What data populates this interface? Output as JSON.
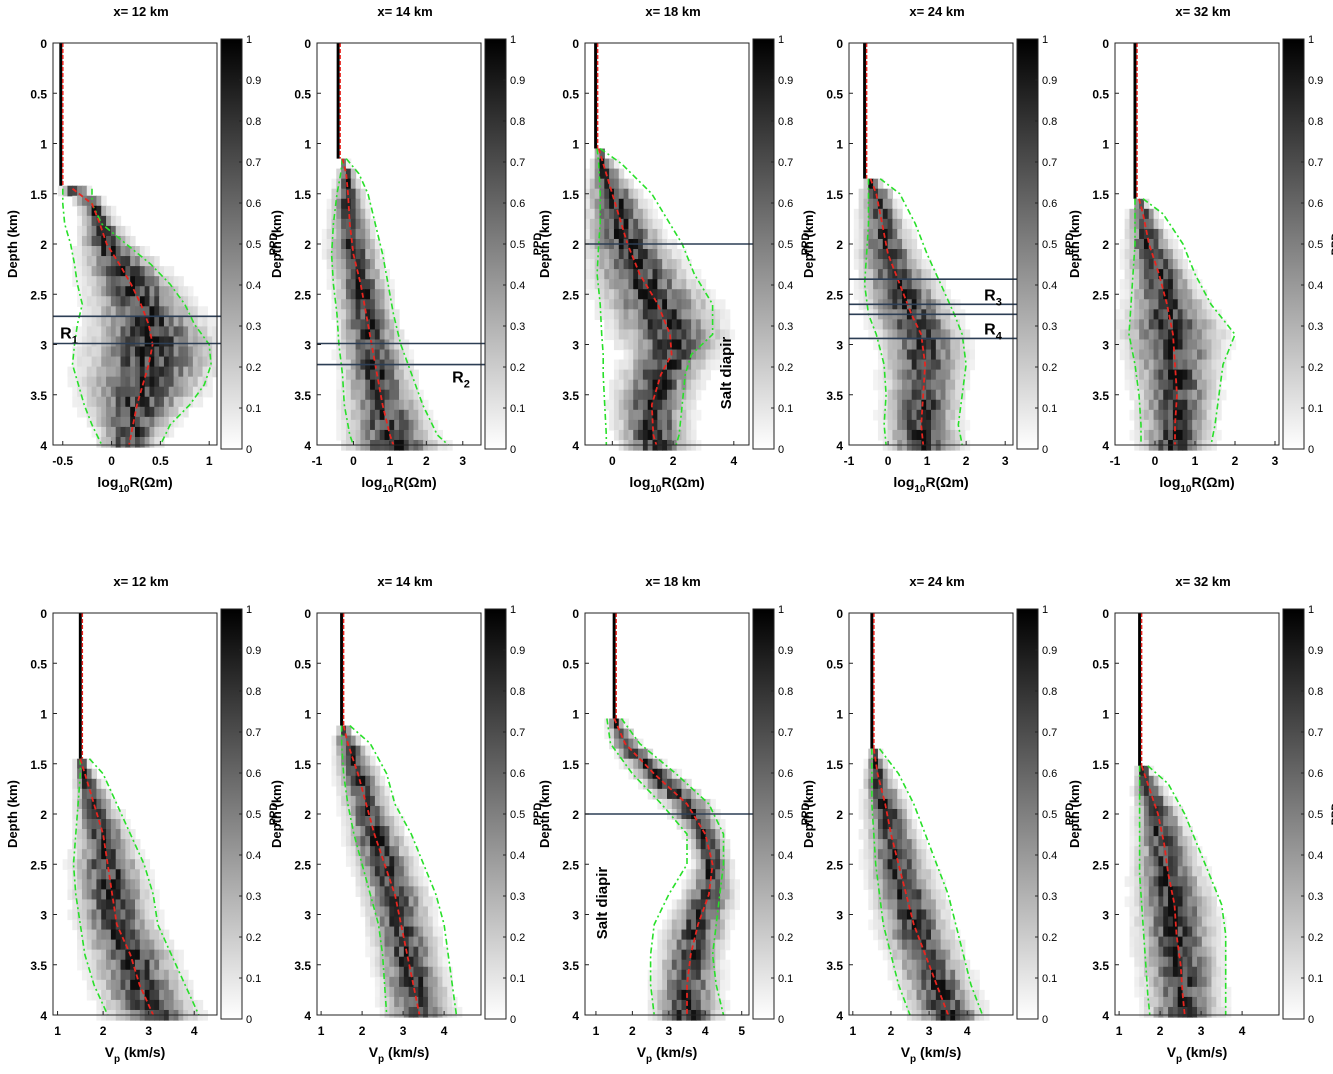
{
  "figure": {
    "common": {
      "ylabel": "Depth (km)",
      "colorbar_label": "PPD",
      "colorbar_ticks": [
        "0",
        "0.1",
        "0.2",
        "0.3",
        "0.4",
        "0.5",
        "0.6",
        "0.7",
        "0.8",
        "0.9",
        "1"
      ],
      "depth_ticks": [
        "0",
        "0.5",
        "1",
        "1.5",
        "2",
        "2.5",
        "3",
        "3.5",
        "4"
      ]
    },
    "colors": {
      "mean": "#e8251f",
      "bounds": "#29e02a",
      "water": "#000000",
      "horizon": "#2c3e55"
    }
  },
  "chart_data": [
    {
      "type": "heatmap",
      "row": "resistivity",
      "title": "x= 12 km",
      "xlabel": {
        "base": "log",
        "sub": "10",
        "rest": "R(Ωm)"
      },
      "xlim": [
        -0.6,
        1.08
      ],
      "xticks": [
        -0.5,
        0,
        0.5,
        1
      ],
      "xtick_labels": [
        "-0.5",
        "0",
        "0.5",
        "1"
      ],
      "ylim": [
        0,
        4
      ],
      "water_depth": 1.42,
      "water_value": -0.52,
      "depth": [
        1.45,
        1.6,
        1.8,
        2.0,
        2.2,
        2.4,
        2.6,
        2.8,
        3.0,
        3.2,
        3.4,
        3.6,
        3.8,
        4.0
      ],
      "mean": [
        -0.4,
        -0.2,
        -0.12,
        -0.05,
        0.08,
        0.2,
        0.3,
        0.38,
        0.42,
        0.38,
        0.32,
        0.26,
        0.22,
        0.18
      ],
      "lower": [
        -0.5,
        -0.5,
        -0.48,
        -0.42,
        -0.38,
        -0.35,
        -0.3,
        -0.35,
        -0.38,
        -0.4,
        -0.34,
        -0.28,
        -0.2,
        -0.1
      ],
      "upper": [
        -0.2,
        -0.2,
        -0.1,
        0.15,
        0.4,
        0.6,
        0.75,
        0.85,
        1.0,
        1.02,
        0.95,
        0.8,
        0.6,
        0.5
      ],
      "horizons": [
        {
          "depth": 2.72,
          "label_main": "R",
          "label_sub": "1",
          "label_side": "left"
        },
        {
          "depth": 2.99,
          "label_main": "",
          "label_sub": "",
          "label_side": "left"
        }
      ],
      "annotation": ""
    },
    {
      "type": "heatmap",
      "row": "resistivity",
      "title": "x= 14 km",
      "xlabel": {
        "base": "log",
        "sub": "10",
        "rest": "R(Ωm)"
      },
      "xlim": [
        -1,
        3.5
      ],
      "xticks": [
        -1,
        0,
        1,
        2,
        3
      ],
      "xtick_labels": [
        "-1",
        "0",
        "1",
        "2",
        "3"
      ],
      "ylim": [
        0,
        4
      ],
      "water_depth": 1.15,
      "water_value": -0.42,
      "depth": [
        1.15,
        1.3,
        1.5,
        1.8,
        2.1,
        2.4,
        2.7,
        3.0,
        3.3,
        3.6,
        3.9,
        4.0
      ],
      "mean": [
        -0.3,
        -0.2,
        -0.15,
        -0.1,
        0.0,
        0.2,
        0.35,
        0.5,
        0.65,
        0.8,
        1.0,
        1.1
      ],
      "lower": [
        -0.3,
        -0.35,
        -0.45,
        -0.55,
        -0.6,
        -0.55,
        -0.45,
        -0.4,
        -0.3,
        -0.25,
        -0.1,
        0.0
      ],
      "upper": [
        -0.2,
        0.15,
        0.4,
        0.6,
        0.8,
        0.95,
        1.1,
        1.3,
        1.6,
        1.9,
        2.3,
        2.6
      ],
      "horizons": [
        {
          "depth": 2.99,
          "label_main": "",
          "label_sub": "",
          "label_side": "right"
        },
        {
          "depth": 3.2,
          "label_main": "R",
          "label_sub": "2",
          "label_side": "right"
        }
      ],
      "annotation": ""
    },
    {
      "type": "heatmap",
      "row": "resistivity",
      "title": "x= 18 km",
      "xlabel": {
        "base": "log",
        "sub": "10",
        "rest": "R(Ωm)"
      },
      "xlim": [
        -0.9,
        4.5
      ],
      "xticks": [
        0,
        2,
        4
      ],
      "xtick_labels": [
        "0",
        "2",
        "4"
      ],
      "ylim": [
        0,
        4
      ],
      "water_depth": 1.05,
      "water_value": -0.55,
      "depth": [
        1.05,
        1.2,
        1.5,
        1.8,
        2.0,
        2.3,
        2.6,
        2.9,
        3.1,
        3.3,
        3.6,
        3.9,
        4.0
      ],
      "mean": [
        -0.45,
        -0.3,
        0.0,
        0.3,
        0.5,
        0.9,
        1.5,
        1.9,
        1.95,
        1.6,
        1.3,
        1.35,
        1.45
      ],
      "lower": [
        -0.5,
        -0.45,
        -0.4,
        -0.4,
        -0.45,
        -0.5,
        -0.4,
        -0.35,
        -0.3,
        -0.3,
        -0.25,
        -0.2,
        -0.2
      ],
      "upper": [
        -0.4,
        0.3,
        1.3,
        1.9,
        2.3,
        2.7,
        3.3,
        3.3,
        2.6,
        2.4,
        2.3,
        2.2,
        2.1
      ],
      "horizons": [
        {
          "depth": 2.0,
          "label_main": "",
          "label_sub": "",
          "label_side": "right"
        }
      ],
      "annotation": "Salt diapir"
    },
    {
      "type": "heatmap",
      "row": "resistivity",
      "title": "x= 24 km",
      "xlabel": {
        "base": "log",
        "sub": "10",
        "rest": "R(Ωm)"
      },
      "xlim": [
        -1,
        3.2
      ],
      "xticks": [
        -1,
        0,
        1,
        2,
        3
      ],
      "xtick_labels": [
        "-1",
        "0",
        "1",
        "2",
        "3"
      ],
      "ylim": [
        0,
        4
      ],
      "water_depth": 1.35,
      "water_value": -0.6,
      "depth": [
        1.35,
        1.5,
        1.8,
        2.1,
        2.4,
        2.7,
        2.9,
        3.2,
        3.5,
        3.8,
        4.0
      ],
      "mean": [
        -0.45,
        -0.3,
        -0.15,
        0.0,
        0.3,
        0.6,
        0.85,
        0.95,
        0.9,
        0.85,
        0.9
      ],
      "lower": [
        -0.5,
        -0.5,
        -0.5,
        -0.55,
        -0.6,
        -0.5,
        -0.3,
        -0.1,
        -0.05,
        -0.1,
        -0.05
      ],
      "upper": [
        -0.2,
        0.3,
        0.7,
        1.0,
        1.35,
        1.7,
        1.9,
        2.0,
        1.9,
        1.8,
        1.9
      ],
      "horizons": [
        {
          "depth": 2.35,
          "label_main": "",
          "label_sub": "",
          "label_side": "right"
        },
        {
          "depth": 2.6,
          "label_main": "R",
          "label_sub": "3",
          "label_side": "right-above"
        },
        {
          "depth": 2.7,
          "label_main": "",
          "label_sub": "",
          "label_side": "right"
        },
        {
          "depth": 2.94,
          "label_main": "R",
          "label_sub": "4",
          "label_side": "right-above"
        }
      ],
      "annotation": ""
    },
    {
      "type": "heatmap",
      "row": "resistivity",
      "title": "x= 32 km",
      "xlabel": {
        "base": "log",
        "sub": "10",
        "rest": "R(Ωm)"
      },
      "xlim": [
        -1,
        3.1
      ],
      "xticks": [
        -1,
        0,
        1,
        2,
        3
      ],
      "xtick_labels": [
        "-1",
        "0",
        "1",
        "2",
        "3"
      ],
      "ylim": [
        0,
        4
      ],
      "water_depth": 1.55,
      "water_value": -0.5,
      "depth": [
        1.55,
        1.7,
        2.0,
        2.3,
        2.6,
        2.9,
        3.2,
        3.5,
        3.8,
        4.0
      ],
      "mean": [
        -0.4,
        -0.3,
        -0.15,
        0.1,
        0.3,
        0.45,
        0.5,
        0.55,
        0.5,
        0.5
      ],
      "lower": [
        -0.5,
        -0.5,
        -0.5,
        -0.55,
        -0.6,
        -0.65,
        -0.5,
        -0.4,
        -0.35,
        -0.35
      ],
      "upper": [
        -0.3,
        0.2,
        0.7,
        1.0,
        1.4,
        2.0,
        1.7,
        1.6,
        1.5,
        1.4
      ],
      "horizons": [],
      "annotation": ""
    },
    {
      "type": "heatmap",
      "row": "velocity",
      "title": "x= 12 km",
      "xlabel": {
        "base": "V",
        "sub": "p",
        "rest": " (km/s)"
      },
      "xlim": [
        0.9,
        4.5
      ],
      "xticks": [
        1,
        2,
        3,
        4
      ],
      "xtick_labels": [
        "1",
        "2",
        "3",
        "4"
      ],
      "ylim": [
        0,
        4
      ],
      "water_depth": 1.45,
      "water_value": 1.5,
      "depth": [
        1.45,
        1.6,
        1.9,
        2.2,
        2.5,
        2.8,
        3.1,
        3.4,
        3.7,
        4.0
      ],
      "mean": [
        1.5,
        1.6,
        1.8,
        2.0,
        2.1,
        2.2,
        2.3,
        2.6,
        2.8,
        3.1
      ],
      "lower": [
        1.5,
        1.5,
        1.45,
        1.4,
        1.35,
        1.4,
        1.5,
        1.6,
        1.8,
        2.1
      ],
      "upper": [
        1.7,
        2.0,
        2.3,
        2.6,
        2.9,
        3.1,
        3.2,
        3.5,
        3.8,
        4.1
      ],
      "horizons": [],
      "annotation": ""
    },
    {
      "type": "heatmap",
      "row": "velocity",
      "title": "x= 14 km",
      "xlabel": {
        "base": "V",
        "sub": "p",
        "rest": " (km/s)"
      },
      "xlim": [
        0.9,
        4.9
      ],
      "xticks": [
        1,
        2,
        3,
        4
      ],
      "xtick_labels": [
        "1",
        "2",
        "3",
        "4"
      ],
      "ylim": [
        0,
        4
      ],
      "water_depth": 1.12,
      "water_value": 1.5,
      "depth": [
        1.12,
        1.3,
        1.6,
        1.9,
        2.2,
        2.5,
        2.8,
        3.1,
        3.4,
        3.7,
        4.0
      ],
      "mean": [
        1.55,
        1.65,
        1.9,
        2.1,
        2.3,
        2.55,
        2.8,
        2.95,
        3.1,
        3.25,
        3.4
      ],
      "lower": [
        1.5,
        1.5,
        1.55,
        1.65,
        1.8,
        2.0,
        2.2,
        2.4,
        2.5,
        2.55,
        2.6
      ],
      "upper": [
        1.7,
        2.2,
        2.6,
        2.8,
        3.2,
        3.5,
        3.8,
        4.0,
        4.1,
        4.2,
        4.3
      ],
      "horizons": [],
      "annotation": ""
    },
    {
      "type": "heatmap",
      "row": "velocity",
      "title": "x= 18 km",
      "xlabel": {
        "base": "V",
        "sub": "p",
        "rest": " (km/s)"
      },
      "xlim": [
        0.7,
        5.2
      ],
      "xticks": [
        1,
        2,
        3,
        4,
        5
      ],
      "xtick_labels": [
        "1",
        "2",
        "3",
        "4",
        "5"
      ],
      "ylim": [
        0,
        4
      ],
      "water_depth": 1.05,
      "water_value": 1.5,
      "depth": [
        1.05,
        1.3,
        1.6,
        1.9,
        2.2,
        2.5,
        2.8,
        3.1,
        3.4,
        3.7,
        4.0
      ],
      "mean": [
        1.5,
        1.8,
        2.6,
        3.5,
        4.0,
        4.2,
        4.1,
        3.8,
        3.6,
        3.5,
        3.5
      ],
      "lower": [
        1.3,
        1.4,
        2.0,
        2.8,
        3.5,
        3.5,
        3.0,
        2.6,
        2.5,
        2.5,
        2.6
      ],
      "upper": [
        1.7,
        2.2,
        3.2,
        4.1,
        4.5,
        4.5,
        4.4,
        4.3,
        4.2,
        4.3,
        4.5
      ],
      "horizons": [
        {
          "depth": 2.0,
          "label_main": "",
          "label_sub": "",
          "label_side": "right"
        }
      ],
      "annotation": "Salt diapir"
    },
    {
      "type": "heatmap",
      "row": "velocity",
      "title": "x= 24 km",
      "xlabel": {
        "base": "V",
        "sub": "p",
        "rest": " (km/s)"
      },
      "xlim": [
        0.9,
        5.2
      ],
      "xticks": [
        1,
        2,
        3,
        4
      ],
      "xtick_labels": [
        "1",
        "2",
        "3",
        "4"
      ],
      "ylim": [
        0,
        4
      ],
      "water_depth": 1.35,
      "water_value": 1.5,
      "depth": [
        1.35,
        1.6,
        1.9,
        2.2,
        2.5,
        2.8,
        3.1,
        3.4,
        3.7,
        4.0
      ],
      "mean": [
        1.55,
        1.65,
        1.85,
        2.0,
        2.2,
        2.4,
        2.6,
        2.9,
        3.2,
        3.5
      ],
      "lower": [
        1.5,
        1.5,
        1.5,
        1.55,
        1.6,
        1.7,
        1.8,
        2.0,
        2.2,
        2.5
      ],
      "upper": [
        1.7,
        2.2,
        2.6,
        2.9,
        3.2,
        3.5,
        3.7,
        3.9,
        4.1,
        4.4
      ],
      "horizons": [],
      "annotation": ""
    },
    {
      "type": "heatmap",
      "row": "velocity",
      "title": "x= 32 km",
      "xlabel": {
        "base": "V",
        "sub": "p",
        "rest": " (km/s)"
      },
      "xlim": [
        0.9,
        4.9
      ],
      "xticks": [
        1,
        2,
        3,
        4
      ],
      "xtick_labels": [
        "1",
        "2",
        "3",
        "4"
      ],
      "ylim": [
        0,
        4
      ],
      "water_depth": 1.52,
      "water_value": 1.5,
      "depth": [
        1.52,
        1.7,
        2.0,
        2.3,
        2.6,
        2.9,
        3.2,
        3.5,
        3.8,
        4.0
      ],
      "mean": [
        1.55,
        1.7,
        1.95,
        2.1,
        2.2,
        2.35,
        2.4,
        2.5,
        2.55,
        2.6
      ],
      "lower": [
        1.5,
        1.5,
        1.5,
        1.5,
        1.5,
        1.55,
        1.6,
        1.65,
        1.7,
        1.75
      ],
      "upper": [
        1.7,
        2.2,
        2.6,
        2.9,
        3.2,
        3.5,
        3.6,
        3.6,
        3.6,
        3.6
      ],
      "horizons": [],
      "annotation": ""
    }
  ]
}
